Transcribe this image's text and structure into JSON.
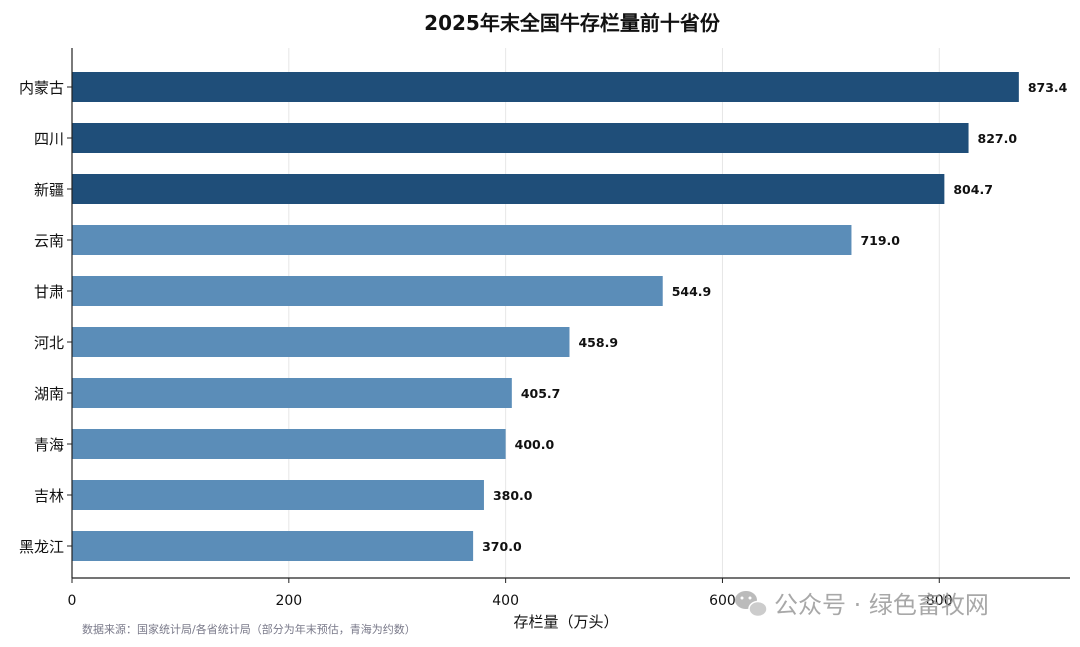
{
  "chart_data": {
    "type": "bar",
    "orientation": "horizontal",
    "title": "2025年末全国牛存栏量前十省份",
    "xlabel": "存栏量（万头）",
    "ylabel": "",
    "categories": [
      "内蒙古",
      "四川",
      "新疆",
      "云南",
      "甘肃",
      "河北",
      "湖南",
      "青海",
      "吉林",
      "黑龙江"
    ],
    "values": [
      873.4,
      827.0,
      804.7,
      719.0,
      544.9,
      458.9,
      405.7,
      400.0,
      380.0,
      370.0
    ],
    "value_labels": [
      "873.4",
      "827.0",
      "804.7",
      "719.0",
      "544.9",
      "458.9",
      "405.7",
      "400.0",
      "380.0",
      "370.0"
    ],
    "xlim": [
      0,
      920
    ],
    "xticks": [
      0,
      200,
      400,
      600,
      800
    ],
    "xtick_labels": [
      "0",
      "200",
      "400",
      "600",
      "800"
    ],
    "grid": "vertical",
    "highlight_top_n": 3,
    "colors": {
      "highlight": "#1f4e79",
      "default": "#5b8db8",
      "grid": "#e6e6e6",
      "axis": "#222222"
    }
  },
  "source_note": "数据来源：国家统计局/各省统计局（部分为年末预估，青海为约数）",
  "watermark": {
    "text": "公众号 · 绿色畜牧网",
    "icon": "wechat-icon"
  }
}
